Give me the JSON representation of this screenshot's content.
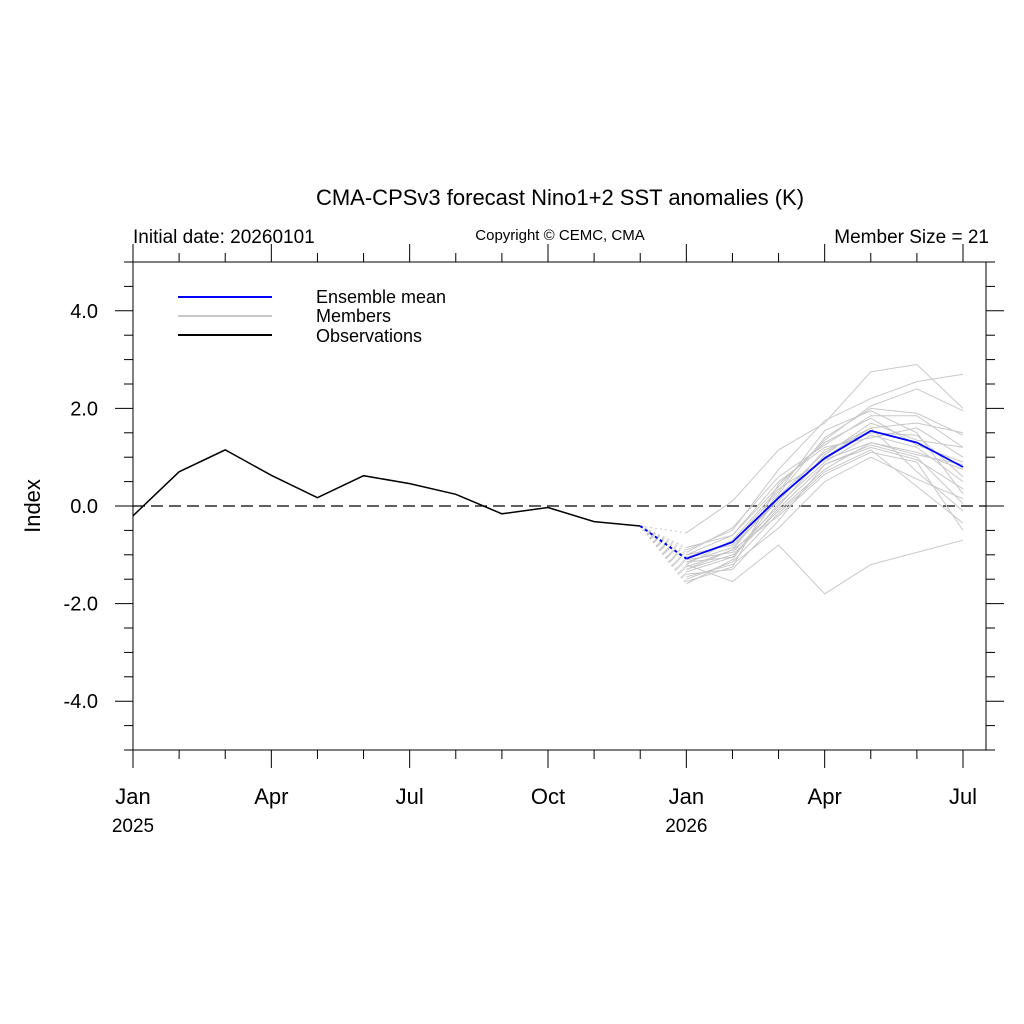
{
  "chart_data": {
    "type": "line",
    "title": "CMA-CPSv3 forecast Nino1+2 SST anomalies (K)",
    "subtitle_left": "Initial date: 20260101",
    "subtitle_center": "Copyright © CEMC, CMA",
    "subtitle_right": "Member Size = 21",
    "ylabel": "Index",
    "ylim": [
      -5,
      5
    ],
    "y_ticks": [
      -4,
      -2,
      0,
      2,
      4
    ],
    "y_tick_labels": [
      "-4.0",
      "-2.0",
      "0.0",
      "2.0",
      "4.0"
    ],
    "x_range": [
      0,
      18
    ],
    "x_ticks": [
      0,
      3,
      6,
      9,
      12,
      15,
      18
    ],
    "x_tick_labels": [
      "Jan",
      "Apr",
      "Jul",
      "Oct",
      "Jan",
      "Apr",
      "Jul"
    ],
    "year_labels": [
      {
        "x": 0,
        "label": "2025"
      },
      {
        "x": 12,
        "label": "2026"
      }
    ],
    "reference_line": 0,
    "legend": [
      {
        "label": "Ensemble mean",
        "color": "#0000ff"
      },
      {
        "label": "Members",
        "color": "#c8c8c8"
      },
      {
        "label": "Observations",
        "color": "#000000"
      }
    ],
    "observations": {
      "name": "Observations",
      "color": "#000000",
      "x": [
        0,
        1,
        2,
        3,
        4,
        5,
        6,
        7,
        8,
        9,
        10,
        11
      ],
      "y": [
        -0.2,
        0.7,
        1.15,
        0.63,
        0.17,
        0.62,
        0.46,
        0.24,
        -0.16,
        -0.03,
        -0.32,
        -0.41
      ]
    },
    "ensemble_mean": {
      "name": "Ensemble mean",
      "color": "#0000ff",
      "x": [
        12,
        13,
        14,
        15,
        16,
        17,
        18
      ],
      "y": [
        -1.08,
        -0.74,
        0.17,
        0.98,
        1.54,
        1.3,
        0.8
      ]
    },
    "members": {
      "name": "Members",
      "color": "#c8c8c8",
      "x": [
        12,
        13,
        14,
        15,
        16,
        17,
        18
      ],
      "values": [
        [
          -1.2,
          -1.55,
          -0.8,
          -1.8,
          -1.2,
          -0.95,
          -0.7
        ],
        [
          -0.55,
          0.1,
          1.15,
          1.7,
          2.75,
          2.9,
          2.0
        ],
        [
          -0.9,
          -0.5,
          0.75,
          1.75,
          2.2,
          2.55,
          2.7
        ],
        [
          -1.0,
          -0.6,
          0.4,
          1.35,
          2.05,
          2.4,
          1.95
        ],
        [
          -1.15,
          -0.85,
          0.15,
          1.0,
          1.6,
          1.7,
          1.5
        ],
        [
          -1.3,
          -1.0,
          -0.1,
          0.75,
          1.3,
          1.05,
          0.85
        ],
        [
          -1.45,
          -1.2,
          -0.45,
          0.5,
          1.0,
          0.55,
          0.15
        ],
        [
          -0.95,
          -0.45,
          0.6,
          1.25,
          1.85,
          1.85,
          1.2
        ],
        [
          -1.35,
          -1.05,
          0.05,
          0.9,
          1.45,
          1.2,
          0.5
        ],
        [
          -1.6,
          -1.1,
          0.2,
          1.1,
          1.6,
          0.7,
          -0.1
        ],
        [
          -1.05,
          -0.75,
          0.3,
          1.55,
          1.95,
          1.5,
          0.25
        ],
        [
          -1.25,
          -0.9,
          -0.2,
          0.65,
          1.1,
          0.9,
          -0.5
        ],
        [
          -0.85,
          -0.6,
          0.5,
          1.2,
          1.4,
          1.6,
          1.0
        ],
        [
          -1.4,
          -1.3,
          -0.3,
          0.85,
          1.2,
          0.95,
          0.35
        ],
        [
          -1.1,
          -0.95,
          0.0,
          1.05,
          1.7,
          1.35,
          1.2
        ],
        [
          -1.2,
          -0.7,
          0.35,
          0.95,
          1.3,
          1.1,
          0.75
        ],
        [
          -1.5,
          -1.15,
          -0.15,
          0.7,
          1.15,
          0.4,
          -0.35
        ],
        [
          -1.0,
          -0.8,
          0.1,
          1.15,
          1.5,
          1.45,
          0.6
        ],
        [
          -1.3,
          -0.9,
          0.25,
          1.4,
          2.0,
          1.9,
          1.45
        ],
        [
          -1.15,
          -1.05,
          -0.05,
          0.85,
          1.25,
          1.0,
          0.05
        ],
        [
          -1.55,
          -1.25,
          0.45,
          1.3,
          1.8,
          1.25,
          0.9
        ]
      ]
    }
  }
}
